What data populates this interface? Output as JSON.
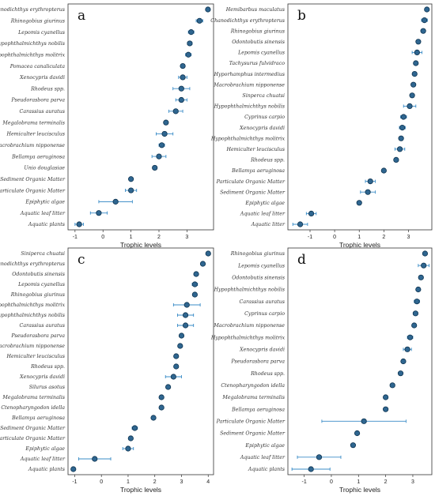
{
  "figure": {
    "panels": [
      {
        "label": "a",
        "xlabel": "Trophic levels",
        "xticks": [
          -1,
          0,
          1,
          2,
          3
        ],
        "xlim": [
          -1.25,
          3.95
        ]
      },
      {
        "label": "b",
        "xlabel": "Trophic levels",
        "xticks": [
          -1,
          0,
          1,
          2,
          3
        ],
        "xlim": [
          -1.9,
          3.95
        ]
      },
      {
        "label": "c",
        "xlabel": "Trophic levels",
        "xticks": [
          -1,
          0,
          1,
          2,
          3,
          4
        ],
        "xlim": [
          -1.25,
          4.2
        ]
      },
      {
        "label": "d",
        "xlabel": "Trophic levels",
        "xticks": [
          -1,
          0,
          1,
          2,
          3
        ],
        "xlim": [
          -1.6,
          3.7
        ]
      }
    ]
  },
  "chart_data": [
    {
      "type": "scatter",
      "title": "a",
      "xlabel": "Trophic levels",
      "ylabel": "",
      "xlim": [
        -1.25,
        3.95
      ],
      "error_bars": true,
      "categories": [
        "Chanodichthys erythropterus",
        "Rhinogobius giurinus",
        "Lepomis cyanellus",
        "Hypophthalmichthys nobilis",
        "Hypophthalmichthys molitrix",
        "Pomacea canaliculata",
        "Xenocypris davidi",
        "Rhodeus spp.",
        "Pseudorasbora parva",
        "Carassius auratus",
        "Megalobrama terminalis",
        "Hemiculter leucisculus",
        "Macrobrachium nipponense",
        "Bellamya aeruginosa",
        "Unio douglasiae",
        "Sediment Organic Matter",
        "Particulate Organic Matter",
        "Epiphytic algae",
        "Aquatic leaf litter",
        "Aquatic plants"
      ],
      "values": [
        3.75,
        3.45,
        3.15,
        3.1,
        3.05,
        2.85,
        2.85,
        2.8,
        2.8,
        2.6,
        2.25,
        2.2,
        2.1,
        2.0,
        1.85,
        1.0,
        1.0,
        0.45,
        -0.15,
        -0.85
      ],
      "errors": [
        0.05,
        0.12,
        0.1,
        0.08,
        0.1,
        0.05,
        0.15,
        0.3,
        0.2,
        0.25,
        0.05,
        0.3,
        0.1,
        0.25,
        0.05,
        0.05,
        0.2,
        0.6,
        0.3,
        0.15
      ]
    },
    {
      "type": "scatter",
      "title": "b",
      "xlabel": "Trophic levels",
      "ylabel": "",
      "xlim": [
        -1.9,
        3.95
      ],
      "error_bars": true,
      "categories": [
        "Hemibarbus maculatus",
        "Chanodichthys erythropterus",
        "Rhinogobius giurinus",
        "Odontobutis sinensis",
        "Lepomis cyanellus",
        "Tachysurus fulvidraco",
        "Hyporhamphus intermedius",
        "Macrobrachium nipponense",
        "Sinperca chuatsi",
        "Hypophthalmichthys nobilis",
        "Cyprinus carpio",
        "Xenocypris davidi",
        "Hypophthalmichthys molitrix",
        "Hemiculter leucisculus",
        "Rhodeus spp.",
        "Bellamya aeruginosa",
        "Particulate Organic Matter",
        "Sediment Organic Matter",
        "Epiphytic algae",
        "Aquatic leaf litter",
        "Aquatic litter"
      ],
      "values": [
        3.75,
        3.65,
        3.6,
        3.4,
        3.35,
        3.3,
        3.25,
        3.2,
        3.15,
        3.05,
        2.8,
        2.75,
        2.7,
        2.65,
        2.5,
        2.0,
        1.45,
        1.35,
        1.0,
        -0.95,
        -1.4
      ],
      "errors": [
        0.05,
        0.12,
        0.05,
        0.05,
        0.2,
        0.05,
        0.05,
        0.05,
        0.05,
        0.25,
        0.12,
        0.12,
        0.05,
        0.2,
        0.05,
        0.05,
        0.2,
        0.3,
        0.05,
        0.2,
        0.3
      ]
    },
    {
      "type": "scatter",
      "title": "c",
      "xlabel": "Trophic levels",
      "ylabel": "",
      "xlim": [
        -1.25,
        4.2
      ],
      "error_bars": true,
      "categories": [
        "Siniperca chuatsi",
        "Chanodichthys erythropterus",
        "Odontobutis sinensis",
        "Lepomis cyanellus",
        "Rhinogobius giurinus",
        "Hypophthalmichthys molitrix",
        "Hypophthalmichthys nobilis",
        "Carassius auratus",
        "Pseudorasbora parva",
        "Macrobrachium nipponense",
        "Hemiculter leucisculus",
        "Rhodeus spp.",
        "Xenocypris davidi",
        "Silurus asotus",
        "Megalobrama terminalis",
        "Ctenopharyngodon idella",
        "Bellamya aeruginosa",
        "Sediment Organic Matter",
        "Particulate Organic Matter",
        "Epiphytic algae",
        "Aquatic leaf litter",
        "Aquatic plants"
      ],
      "values": [
        4.0,
        3.8,
        3.55,
        3.5,
        3.5,
        3.2,
        3.15,
        3.15,
        3.0,
        2.95,
        2.8,
        2.8,
        2.7,
        2.5,
        2.25,
        2.25,
        1.95,
        1.25,
        1.1,
        1.0,
        -0.25,
        -1.05
      ],
      "errors": [
        0.05,
        0.05,
        0.05,
        0.1,
        0.05,
        0.5,
        0.3,
        0.3,
        0.05,
        0.05,
        0.05,
        0.05,
        0.3,
        0.05,
        0.05,
        0.05,
        0.05,
        0.1,
        0.05,
        0.2,
        0.6,
        0.05
      ]
    },
    {
      "type": "scatter",
      "title": "d",
      "xlabel": "Trophic levels",
      "ylabel": "",
      "xlim": [
        -1.6,
        3.7
      ],
      "error_bars": true,
      "categories": [
        "Rhinogobius giurinus",
        "Lepomis cyanellus",
        "Odontobutis sinensis",
        "Hypophthalmichthys nobilis",
        "Carassius auratus",
        "Cyprinus carpio",
        "Macrobrachium nipponense",
        "Hypophthalmichthys molitrix",
        "Xenocypris davidi",
        "Pseudorasbora parva",
        "Rhodeus spp.",
        "Ctenopharyngodon idella",
        "Megalobrama terminalis",
        "Bellamya aeruginosa",
        "Particulate Organic Matter",
        "Sediment Organic Matter",
        "Epiphytic algae",
        "Aquatic leaf litter",
        "Aquatic plants"
      ],
      "values": [
        3.45,
        3.4,
        3.3,
        3.2,
        3.15,
        3.1,
        3.05,
        2.9,
        2.8,
        2.65,
        2.55,
        2.25,
        2.0,
        2.0,
        1.2,
        0.95,
        0.8,
        -0.45,
        -0.75
      ],
      "errors": [
        0.05,
        0.2,
        0.05,
        0.05,
        0.1,
        0.05,
        0.05,
        0.1,
        0.15,
        0.05,
        0.05,
        0.05,
        0.05,
        0.05,
        1.55,
        0.05,
        0.05,
        0.8,
        0.7
      ]
    }
  ]
}
